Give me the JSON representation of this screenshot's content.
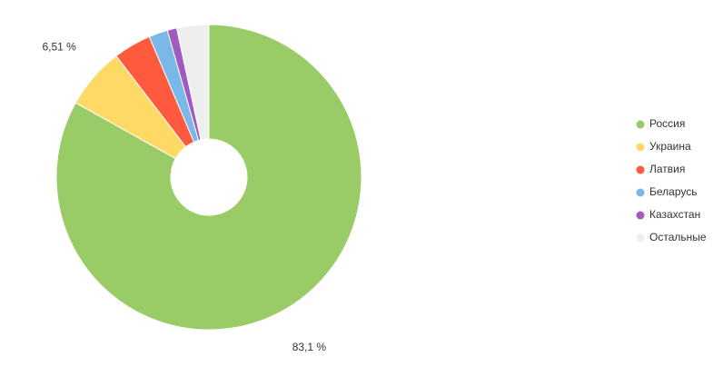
{
  "chart_data": {
    "type": "pie",
    "donut": true,
    "legend": "right",
    "categories": [
      "Россия",
      "Украина",
      "Латвия",
      "Беларусь",
      "Казахстан",
      "Остальные"
    ],
    "values": [
      83.1,
      6.51,
      4,
      2,
      1,
      3.39
    ],
    "value_labels": [
      "83,1 %",
      "6,51 %",
      null,
      null,
      null,
      null
    ],
    "colors": [
      "#99cc66",
      "#ffd966",
      "#ff5a3d",
      "#7ab8e8",
      "#a05bc0",
      "#eeeeee"
    ]
  }
}
